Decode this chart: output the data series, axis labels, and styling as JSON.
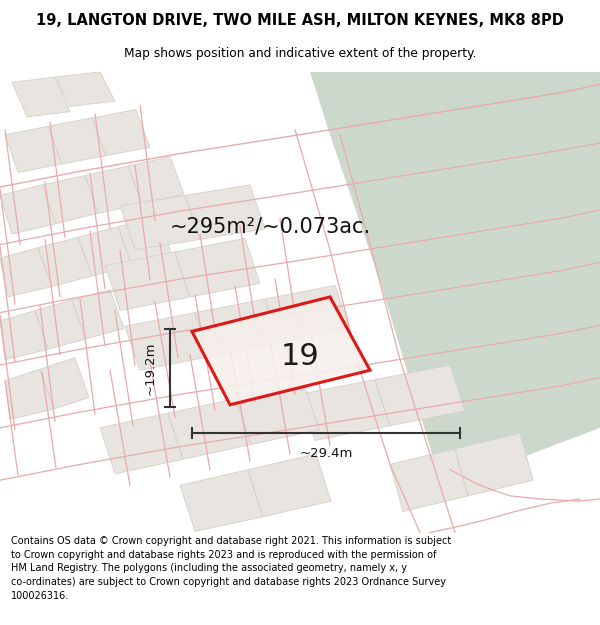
{
  "title_line1": "19, LANGTON DRIVE, TWO MILE ASH, MILTON KEYNES, MK8 8PD",
  "title_line2": "Map shows position and indicative extent of the property.",
  "area_text": "~295m²/~0.073ac.",
  "label_number": "19",
  "dim_width": "~29.4m",
  "dim_height": "~19.2m",
  "footer_text": "Contains OS data © Crown copyright and database right 2021. This information is subject\nto Crown copyright and database rights 2023 and is reproduced with the permission of\nHM Land Registry. The polygons (including the associated geometry, namely x, y\nco-ordinates) are subject to Crown copyright and database rights 2023 Ordnance Survey\n100026316.",
  "map_bg": "#f0ede8",
  "green_color": "#ccd8cc",
  "plot_outline_color": "#dd0000",
  "dim_line_color": "#333333",
  "street_color": "#e8aaaa",
  "building_fill": "#e8e4e0",
  "building_stroke": "#d4cfc9",
  "road_fill": "#e8e4df"
}
